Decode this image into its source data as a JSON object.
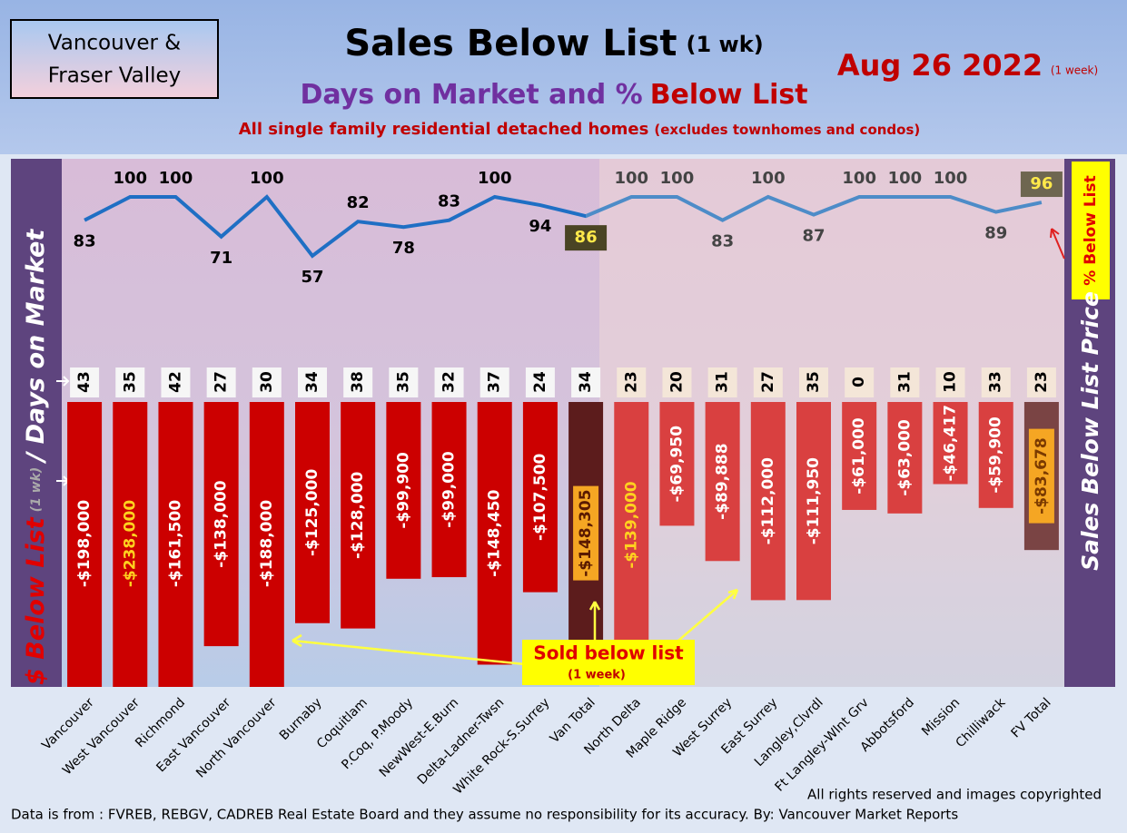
{
  "chart_data": {
    "type": "bar",
    "region": [
      "Vancouver &",
      "Fraser Valley"
    ],
    "title": "Sales Below List",
    "title_note": "(1 wk)",
    "subtitle": [
      "Days on Market and %",
      "Below List"
    ],
    "note": [
      "All single family residential detached homes",
      "(excludes townhomes and condos)"
    ],
    "date": "Aug 26  2022",
    "date_note": "(1 week)",
    "y_label_note": "(1 wk)",
    "y2_label": "Sales Below List Price",
    "annotation": [
      "Sold below list",
      "(1 week)"
    ],
    "footer": [
      "All rights reserved and  images copyrighted",
      "Data is from : FVREB, REBGV, CADREB Real Estate Board and they assume no responsibility for its accuracy. By: Vancouver Market Reports"
    ],
    "categories": [
      "Vancouver",
      "West Vancouver",
      "Richmond",
      "East Vancouver",
      "North Vancouver",
      "Burnaby",
      "Coquitlam",
      "P.Coq, P.Moody",
      "NewWest-E.Burn",
      "Delta-Ladner-Twsn",
      "White Rock-S.Surrey",
      "Van Total",
      "North Delta",
      "Maple Ridge",
      "West Surrey",
      "East Surrey",
      "Langley,Clvrdl",
      "Ft Langley-Wlnt Grv",
      "Abbotsford",
      "Mission",
      "Chilliwack",
      "FV Total"
    ],
    "ylim": [
      -160000,
      0
    ],
    "y2lim": [
      0,
      100
    ],
    "series": [
      {
        "name": "/ Days on Market",
        "values": [
          43,
          35,
          42,
          27,
          30,
          34,
          38,
          35,
          32,
          37,
          24,
          34,
          23,
          20,
          31,
          27,
          35,
          0,
          31,
          10,
          33,
          23
        ],
        "colors": [
          "#f6f6f6",
          "#f6f6f6",
          "#f6f6f6",
          "#f6f6f6",
          "#f6f6f6",
          "#f6f6f6",
          "#f6f6f6",
          "#f6f6f6",
          "#f6f6f6",
          "#f6f6f6",
          "#f6f6f6",
          "#f6f6f6",
          "#f4e6d8",
          "#f4e6d8",
          "#f4e6d8",
          "#f4e6d8",
          "#f4e6d8",
          "#f4e6d8",
          "#f4e6d8",
          "#f4e6d8",
          "#f4e6d8",
          "#f4e6d8"
        ]
      },
      {
        "name": "$ Below List",
        "values": [
          -198000,
          -238000,
          -161500,
          -138000,
          -188000,
          -125000,
          -128000,
          -99900,
          -99000,
          -148450,
          -107500,
          -148305,
          -139000,
          -69950,
          -89888,
          -112000,
          -111950,
          -61000,
          -63000,
          -46417,
          -59900,
          -83678
        ],
        "value_labels": [
          "-$198,000",
          "-$238,000",
          "-$161,500",
          "-$138,000",
          "-$188,000",
          "-$125,000",
          "-$128,000",
          "-$99,900",
          "-$99,000",
          "-$148,450",
          "-$107,500",
          "-$148,305",
          "-$139,000",
          "-$69,950",
          "-$89,888",
          "-$112,000",
          "-$111,950",
          "-$61,000",
          "-$63,000",
          "-$46,417",
          "-$59,900",
          "-$83,678"
        ],
        "colors": [
          "#cc0000",
          "#cc0000",
          "#cc0000",
          "#cc0000",
          "#cc0000",
          "#cc0000",
          "#cc0000",
          "#cc0000",
          "#cc0000",
          "#cc0000",
          "#cc0000",
          "#5c1c1c",
          "#d94040",
          "#d94040",
          "#d94040",
          "#d94040",
          "#d94040",
          "#d94040",
          "#d94040",
          "#d94040",
          "#d94040",
          "#7a4444"
        ],
        "label_colors": [
          "#ffffff",
          "#ffd21f",
          "#ffffff",
          "#ffffff",
          "#ffffff",
          "#ffffff",
          "#ffffff",
          "#ffffff",
          "#ffffff",
          "#ffffff",
          "#ffffff",
          "#5a1a00",
          "#ffd21f",
          "#ffffff",
          "#ffffff",
          "#ffffff",
          "#ffffff",
          "#ffffff",
          "#ffffff",
          "#ffffff",
          "#ffffff",
          "#7a3a00"
        ],
        "label_backgrounds": [
          null,
          null,
          null,
          null,
          null,
          null,
          null,
          null,
          null,
          null,
          null,
          "#f5a623",
          null,
          null,
          null,
          null,
          null,
          null,
          null,
          null,
          null,
          "#f5a623"
        ]
      },
      {
        "name": "% Below List",
        "axis": "y2",
        "values": [
          83,
          100,
          100,
          71,
          100,
          57,
          82,
          78,
          83,
          100,
          94,
          86,
          100,
          100,
          83,
          100,
          87,
          100,
          100,
          100,
          89,
          96
        ],
        "colors": [
          "#1f6fc4",
          "#4d8cc8"
        ],
        "label_colors": [
          "#000",
          "#000",
          "#000",
          "#000",
          "#000",
          "#000",
          "#000",
          "#000",
          "#000",
          "#000",
          "#000",
          "#ffe94a",
          "#444",
          "#444",
          "#444",
          "#444",
          "#444",
          "#444",
          "#444",
          "#444",
          "#444",
          "#ffe94a"
        ],
        "label_backgrounds": [
          null,
          null,
          null,
          null,
          null,
          null,
          null,
          null,
          null,
          null,
          null,
          "#4a4424",
          null,
          null,
          null,
          null,
          null,
          null,
          null,
          null,
          null,
          "#6e6650"
        ]
      }
    ]
  }
}
